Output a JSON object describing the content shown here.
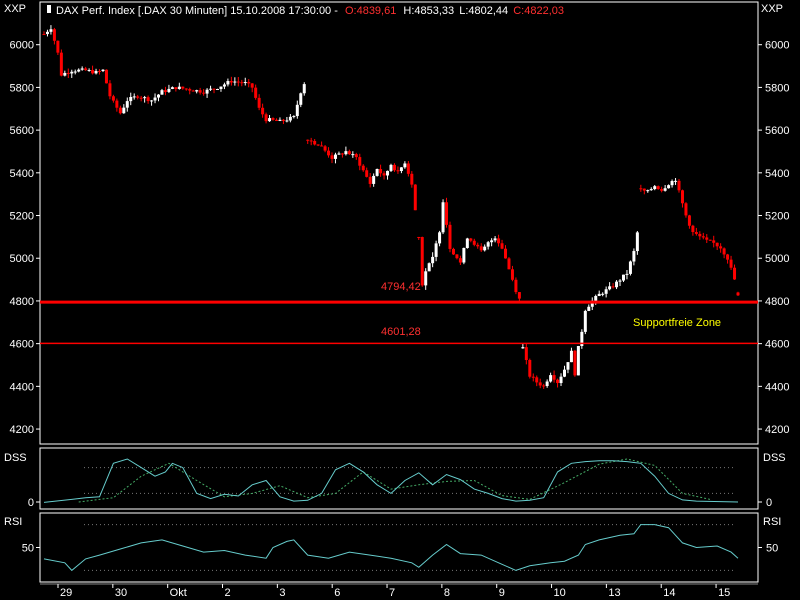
{
  "header": {
    "left_label": "XXP",
    "right_label": "XXP",
    "instrument": "DAX Perf. Index [.DAX  30 Minuten] 15.10.2008 17:30:00 -",
    "open": "O:4839,61",
    "high": "H:4853,33",
    "low": "L:4802,44",
    "close": "C:4822,03"
  },
  "colors": {
    "background": "#000000",
    "up_candle": "#ffffff",
    "down_candle": "#ff0000",
    "support_line": "#ff0000",
    "support_label": "#ff3030",
    "zone_label": "#ffff00",
    "dss_line": "#66cccc",
    "dss_signal": "#44aa66",
    "rsi_line": "#66cccc",
    "grid_dots": "#777777"
  },
  "annotations": {
    "support1_label": "4794,42",
    "support2_label": "4601,28",
    "zone_label": "Supportfreie Zone"
  },
  "panels": {
    "dss_label_left": "DSS",
    "dss_label_right": "DSS",
    "rsi_label_left": "RSI",
    "rsi_label_right": "RSI"
  },
  "chart_data": {
    "type": "candlestick",
    "title": "DAX Perf. Index [.DAX  30 Minuten]",
    "x_tick_labels": [
      "29",
      "30",
      "Okt",
      "2",
      "3",
      "6",
      "7",
      "8",
      "9",
      "10",
      "13",
      "14",
      "15"
    ],
    "y_ticks": [
      4200,
      4400,
      4600,
      4800,
      5000,
      5200,
      5400,
      5600,
      5800,
      6000
    ],
    "y_tick_labels": [
      "4200",
      "4400",
      "4600",
      "4800",
      "5000",
      "5200",
      "5400",
      "5600",
      "5800",
      "6000"
    ],
    "ylim": [
      4130,
      6200
    ],
    "support_levels": [
      4794.42,
      4601.28
    ],
    "last_bar": {
      "open": 4839.61,
      "high": 4853.33,
      "low": 4802.44,
      "close": 4822.03
    },
    "close_path": [
      [
        0,
        6050
      ],
      [
        2,
        6080
      ],
      [
        4,
        5960
      ],
      [
        5,
        5860
      ],
      [
        8,
        5880
      ],
      [
        12,
        5880
      ],
      [
        15,
        5870
      ],
      [
        17,
        5880
      ],
      [
        19,
        5760
      ],
      [
        20,
        5730
      ],
      [
        22,
        5680
      ],
      [
        24,
        5740
      ],
      [
        27,
        5760
      ],
      [
        31,
        5740
      ],
      [
        34,
        5780
      ],
      [
        38,
        5800
      ],
      [
        42,
        5790
      ],
      [
        46,
        5780
      ],
      [
        50,
        5800
      ],
      [
        54,
        5830
      ],
      [
        58,
        5820
      ],
      [
        60,
        5800
      ],
      [
        62,
        5700
      ],
      [
        64,
        5650
      ],
      [
        68,
        5640
      ],
      [
        72,
        5660
      ],
      [
        74,
        5780
      ],
      [
        75,
        5820
      ],
      [
        76,
        5560
      ],
      [
        80,
        5520
      ],
      [
        83,
        5470
      ],
      [
        87,
        5500
      ],
      [
        90,
        5470
      ],
      [
        92,
        5410
      ],
      [
        94,
        5350
      ],
      [
        96,
        5420
      ],
      [
        98,
        5380
      ],
      [
        100,
        5440
      ],
      [
        102,
        5400
      ],
      [
        104,
        5450
      ],
      [
        106,
        5350
      ],
      [
        108,
        5100
      ],
      [
        109,
        4880
      ],
      [
        110,
        4940
      ],
      [
        112,
        5000
      ],
      [
        114,
        5130
      ],
      [
        115,
        5270
      ],
      [
        117,
        5050
      ],
      [
        120,
        4980
      ],
      [
        122,
        5100
      ],
      [
        124,
        5070
      ],
      [
        126,
        5030
      ],
      [
        128,
        5070
      ],
      [
        130,
        5100
      ],
      [
        132,
        5050
      ],
      [
        134,
        4950
      ],
      [
        136,
        4850
      ],
      [
        137,
        4810
      ],
      [
        138,
        4580
      ],
      [
        140,
        4450
      ],
      [
        142,
        4420
      ],
      [
        144,
        4400
      ],
      [
        146,
        4460
      ],
      [
        148,
        4420
      ],
      [
        150,
        4480
      ],
      [
        152,
        4560
      ],
      [
        153,
        4460
      ],
      [
        154,
        4580
      ],
      [
        155,
        4660
      ],
      [
        156,
        4760
      ],
      [
        158,
        4800
      ],
      [
        160,
        4830
      ],
      [
        164,
        4870
      ],
      [
        168,
        4930
      ],
      [
        170,
        5030
      ],
      [
        171,
        5120
      ],
      [
        172,
        5320
      ],
      [
        174,
        5310
      ],
      [
        176,
        5340
      ],
      [
        178,
        5320
      ],
      [
        180,
        5350
      ],
      [
        182,
        5370
      ],
      [
        183,
        5310
      ],
      [
        185,
        5200
      ],
      [
        187,
        5120
      ],
      [
        189,
        5100
      ],
      [
        191,
        5080
      ],
      [
        193,
        5070
      ],
      [
        195,
        5050
      ],
      [
        197,
        5000
      ],
      [
        199,
        4900
      ],
      [
        200,
        4822.03
      ]
    ],
    "dss": {
      "ticks": [
        0
      ],
      "tick_labels": [
        "0"
      ],
      "series": [
        [
          0,
          -1
        ],
        [
          8,
          6
        ],
        [
          12,
          10
        ],
        [
          16,
          12
        ],
        [
          20,
          90
        ],
        [
          24,
          100
        ],
        [
          28,
          80
        ],
        [
          32,
          60
        ],
        [
          35,
          70
        ],
        [
          37,
          90
        ],
        [
          40,
          80
        ],
        [
          44,
          20
        ],
        [
          48,
          8
        ],
        [
          52,
          18
        ],
        [
          56,
          14
        ],
        [
          60,
          40
        ],
        [
          64,
          50
        ],
        [
          68,
          12
        ],
        [
          72,
          2
        ],
        [
          76,
          4
        ],
        [
          80,
          20
        ],
        [
          84,
          75
        ],
        [
          88,
          90
        ],
        [
          92,
          70
        ],
        [
          96,
          40
        ],
        [
          100,
          20
        ],
        [
          104,
          50
        ],
        [
          108,
          68
        ],
        [
          112,
          40
        ],
        [
          116,
          64
        ],
        [
          120,
          52
        ],
        [
          124,
          30
        ],
        [
          128,
          20
        ],
        [
          132,
          8
        ],
        [
          136,
          2
        ],
        [
          140,
          4
        ],
        [
          144,
          10
        ],
        [
          148,
          70
        ],
        [
          152,
          90
        ],
        [
          156,
          94
        ],
        [
          160,
          96
        ],
        [
          164,
          96
        ],
        [
          168,
          94
        ],
        [
          172,
          90
        ],
        [
          176,
          60
        ],
        [
          180,
          20
        ],
        [
          184,
          5
        ],
        [
          188,
          2
        ],
        [
          200,
          0
        ]
      ],
      "signal": [
        [
          10,
          0
        ],
        [
          20,
          10
        ],
        [
          28,
          60
        ],
        [
          36,
          90
        ],
        [
          44,
          50
        ],
        [
          52,
          12
        ],
        [
          60,
          20
        ],
        [
          68,
          38
        ],
        [
          76,
          10
        ],
        [
          84,
          20
        ],
        [
          92,
          70
        ],
        [
          100,
          30
        ],
        [
          108,
          40
        ],
        [
          116,
          48
        ],
        [
          124,
          50
        ],
        [
          132,
          15
        ],
        [
          140,
          6
        ],
        [
          150,
          45
        ],
        [
          160,
          88
        ],
        [
          168,
          100
        ],
        [
          176,
          85
        ],
        [
          184,
          20
        ],
        [
          192,
          6
        ]
      ]
    },
    "rsi": {
      "ticks": [
        50
      ],
      "tick_labels": [
        "50"
      ],
      "series": [
        [
          0,
          35
        ],
        [
          6,
          30
        ],
        [
          8,
          20
        ],
        [
          12,
          35
        ],
        [
          16,
          40
        ],
        [
          22,
          48
        ],
        [
          28,
          56
        ],
        [
          34,
          60
        ],
        [
          40,
          52
        ],
        [
          46,
          44
        ],
        [
          52,
          46
        ],
        [
          58,
          40
        ],
        [
          64,
          36
        ],
        [
          66,
          50
        ],
        [
          70,
          58
        ],
        [
          72,
          60
        ],
        [
          76,
          40
        ],
        [
          82,
          36
        ],
        [
          88,
          44
        ],
        [
          94,
          40
        ],
        [
          100,
          36
        ],
        [
          106,
          30
        ],
        [
          108,
          24
        ],
        [
          112,
          40
        ],
        [
          116,
          54
        ],
        [
          120,
          42
        ],
        [
          126,
          40
        ],
        [
          132,
          28
        ],
        [
          136,
          20
        ],
        [
          140,
          26
        ],
        [
          146,
          30
        ],
        [
          150,
          32
        ],
        [
          154,
          40
        ],
        [
          156,
          54
        ],
        [
          160,
          60
        ],
        [
          166,
          66
        ],
        [
          170,
          68
        ],
        [
          172,
          80
        ],
        [
          176,
          80
        ],
        [
          180,
          76
        ],
        [
          184,
          56
        ],
        [
          188,
          50
        ],
        [
          194,
          52
        ],
        [
          198,
          44
        ],
        [
          200,
          36
        ]
      ]
    }
  }
}
